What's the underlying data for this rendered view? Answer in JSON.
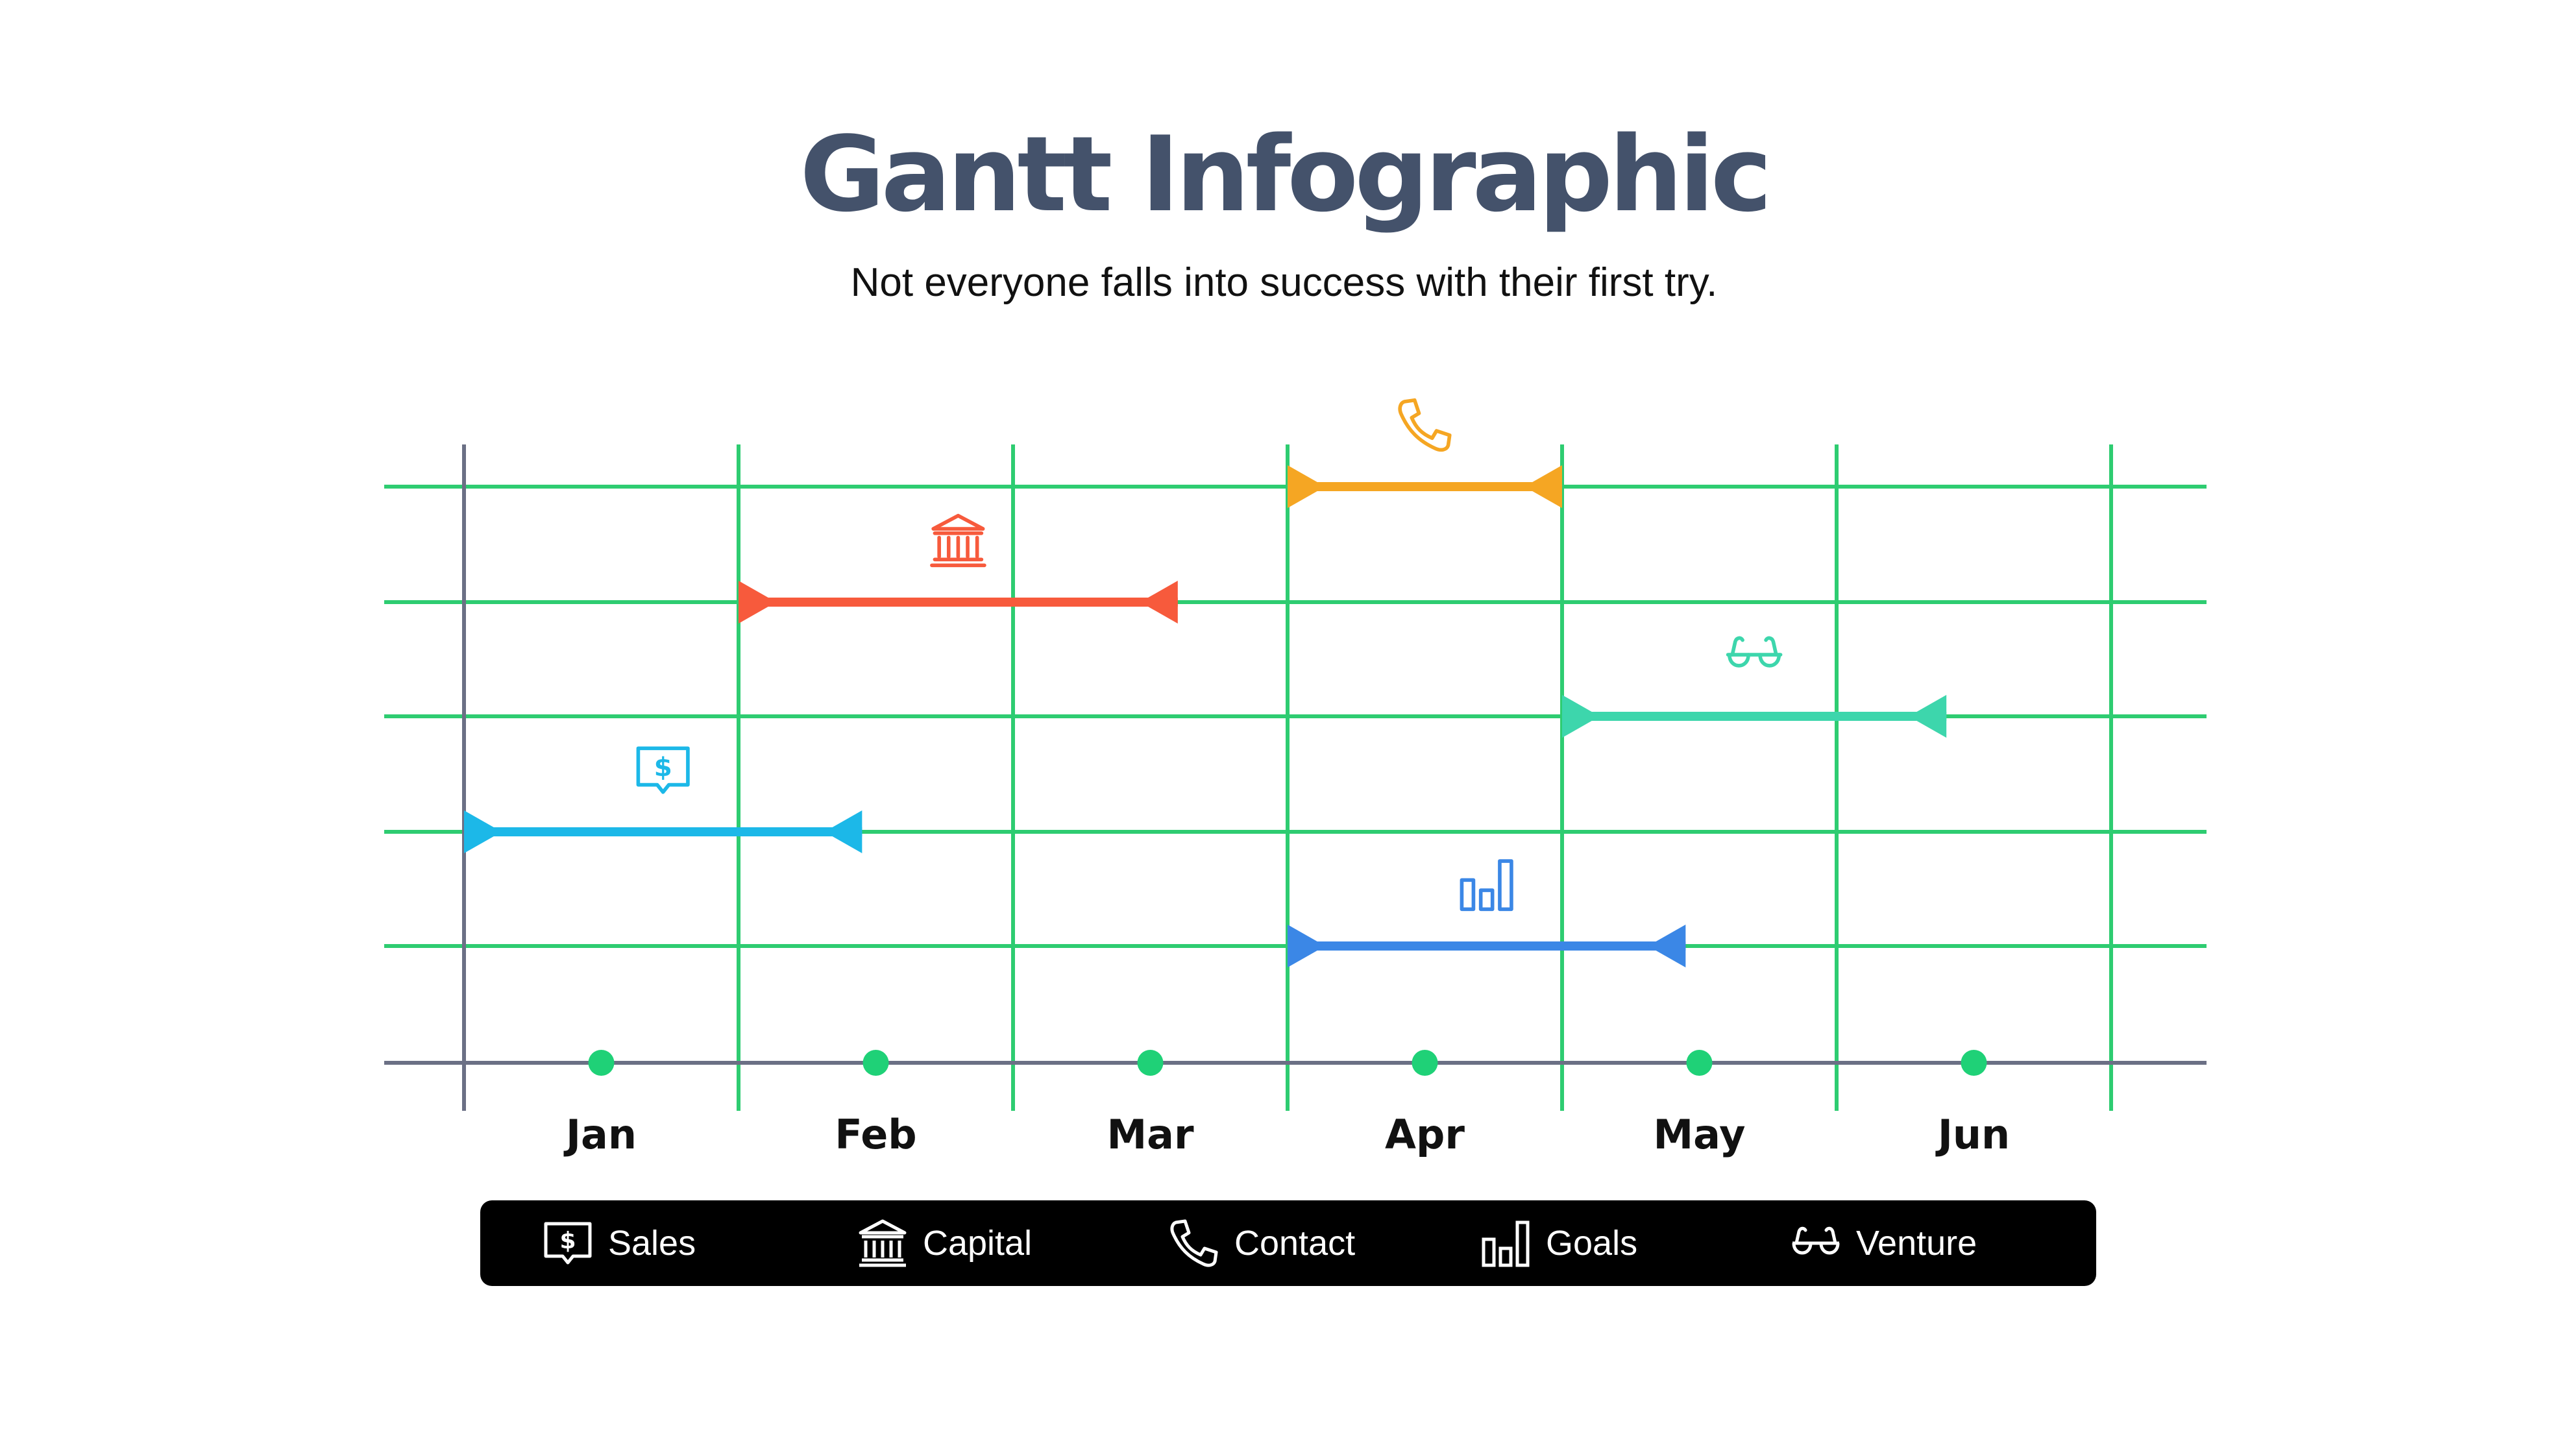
{
  "header": {
    "title": "Gantt Infographic",
    "subtitle": "Not everyone falls into success with their first try."
  },
  "chart_data": {
    "type": "gantt",
    "months": [
      "Jan",
      "Feb",
      "Mar",
      "Apr",
      "May",
      "Jun"
    ],
    "tasks": [
      {
        "name": "Contact",
        "row": 1,
        "start": 3.0,
        "end": 4.0,
        "color": "#f5a623",
        "icon": "phone-icon"
      },
      {
        "name": "Capital",
        "row": 2,
        "start": 1.0,
        "end": 2.6,
        "color": "#f75a3c",
        "icon": "bank-icon"
      },
      {
        "name": "Venture",
        "row": 3,
        "start": 4.0,
        "end": 5.4,
        "color": "#3dd6ac",
        "icon": "glasses-icon"
      },
      {
        "name": "Sales",
        "row": 4,
        "start": 0.0,
        "end": 1.45,
        "color": "#1cb8e8",
        "icon": "dollar-chat-icon"
      },
      {
        "name": "Goals",
        "row": 5,
        "start": 3.0,
        "end": 4.45,
        "color": "#3b87e6",
        "icon": "bar-chart-icon"
      }
    ],
    "colors": {
      "grid": "#2ecc71",
      "axis": "#6b7085",
      "marker": "#1fd177"
    }
  },
  "legend": {
    "items": [
      {
        "label": "Sales",
        "icon": "dollar-chat-icon"
      },
      {
        "label": "Capital",
        "icon": "bank-icon"
      },
      {
        "label": "Contact",
        "icon": "phone-icon"
      },
      {
        "label": "Goals",
        "icon": "bar-chart-icon"
      },
      {
        "label": "Venture",
        "icon": "glasses-icon"
      }
    ]
  }
}
